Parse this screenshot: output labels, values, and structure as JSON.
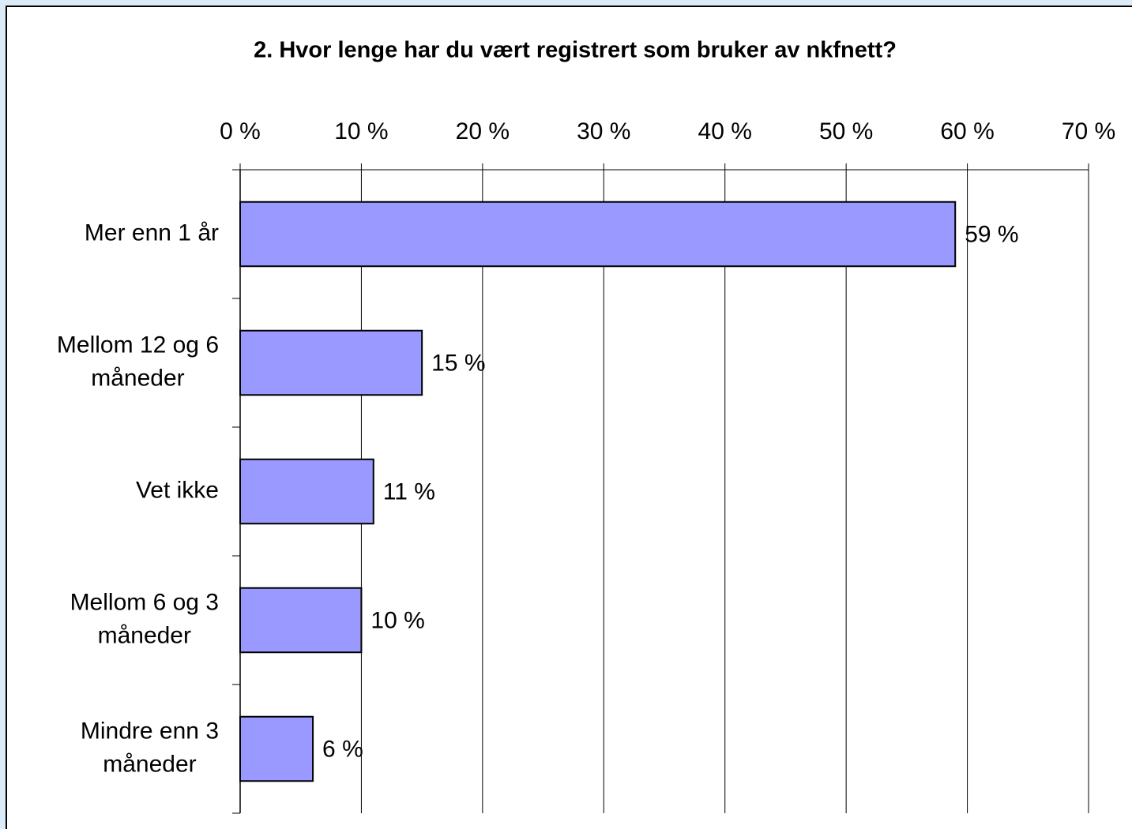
{
  "chart_data": {
    "type": "bar",
    "orientation": "horizontal",
    "title": "2. Hvor lenge har du vært registrert som bruker av nkfnett?",
    "categories": [
      "Mer enn 1 år",
      "Mellom 12 og 6 måneder",
      "Vet ikke",
      "Mellom 6 og 3 måneder",
      "Mindre enn 3 måneder"
    ],
    "values": [
      59,
      15,
      11,
      10,
      6
    ],
    "value_labels": [
      "59 %",
      "15 %",
      "11 %",
      "10 %",
      "6 %"
    ],
    "color": "#9999ff",
    "xlim": [
      0,
      70
    ],
    "xticks": [
      {
        "value": 0,
        "label": "0 %"
      },
      {
        "value": 10,
        "label": "10 %"
      },
      {
        "value": 20,
        "label": "20 %"
      },
      {
        "value": 30,
        "label": "30 %"
      },
      {
        "value": 40,
        "label": "40 %"
      },
      {
        "value": 50,
        "label": "50 %"
      },
      {
        "value": 60,
        "label": "60 %"
      },
      {
        "value": 70,
        "label": "70 %"
      }
    ],
    "grid": true
  }
}
